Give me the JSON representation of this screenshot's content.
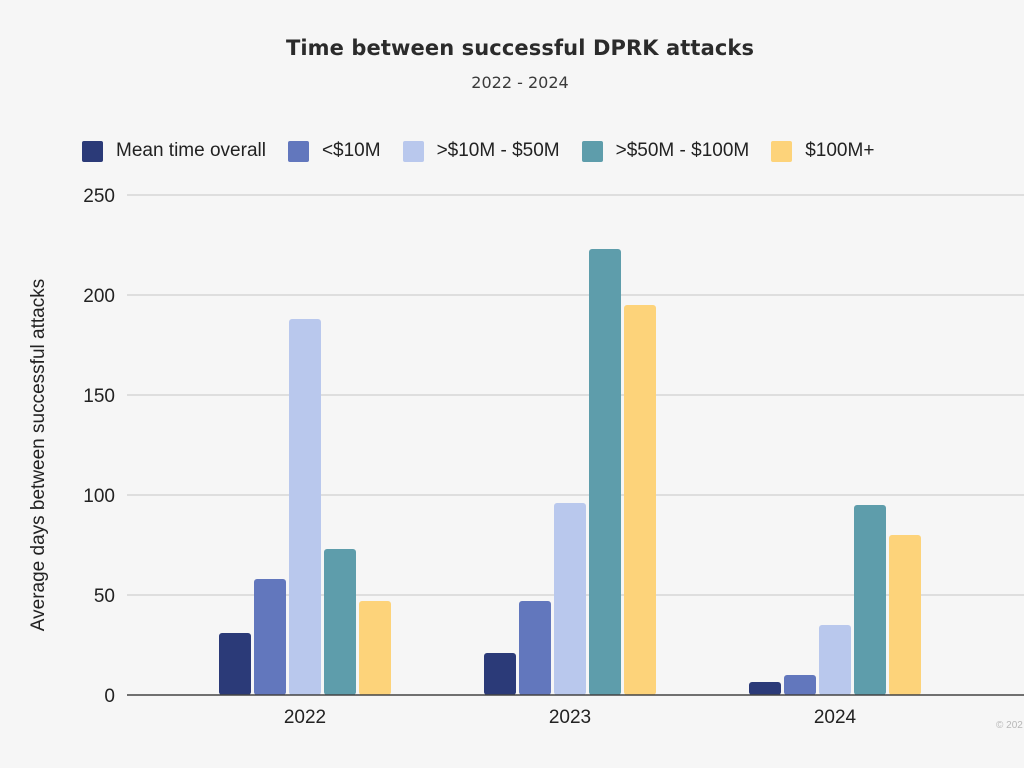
{
  "chart_data": {
    "type": "bar",
    "title": "Time between successful DPRK attacks",
    "subtitle": "2022 - 2024",
    "xlabel": "",
    "ylabel": "Average days between successful attacks",
    "ylim": [
      0,
      250
    ],
    "yticks": [
      0,
      50,
      100,
      150,
      200,
      250
    ],
    "grid": true,
    "legend_position": "top",
    "categories": [
      "2022",
      "2023",
      "2024"
    ],
    "series": [
      {
        "name": "Mean time overall",
        "color": "#2b3a78",
        "values": [
          31,
          21,
          6.5
        ]
      },
      {
        "name": "<$10M",
        "color": "#6277bd",
        "values": [
          58,
          47,
          10
        ]
      },
      {
        "name": ">$10M - $50M",
        "color": "#b9c8ed",
        "values": [
          188,
          96,
          35
        ]
      },
      {
        "name": ">$50M - $100M",
        "color": "#5e9dab",
        "values": [
          73,
          223,
          95
        ]
      },
      {
        "name": "$100M+",
        "color": "#fdd37a",
        "values": [
          47,
          195,
          80
        ]
      }
    ]
  },
  "footer": {
    "copyright": "© 202"
  }
}
